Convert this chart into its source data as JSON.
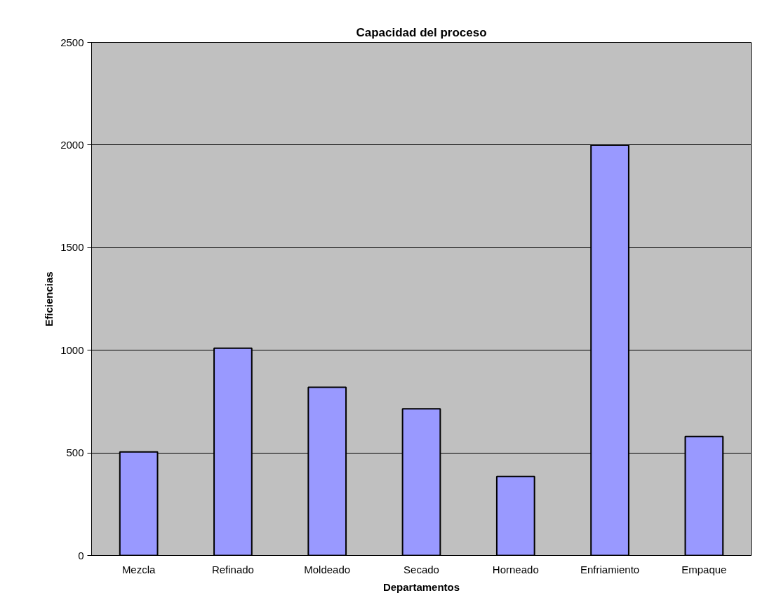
{
  "chart_data": {
    "type": "bar",
    "title": "Capacidad del proceso",
    "xlabel": "Departamentos",
    "ylabel": "Eficiencias",
    "categories": [
      "Mezcla",
      "Refinado",
      "Moldeado",
      "Secado",
      "Horneado",
      "Enfriamiento",
      "Empaque"
    ],
    "values": [
      505,
      1010,
      820,
      715,
      385,
      2000,
      580
    ],
    "color": "#9999ff",
    "ylim": [
      0,
      2500
    ],
    "yticks": [
      0,
      500,
      1000,
      1500,
      2000,
      2500
    ],
    "grid": "y"
  }
}
